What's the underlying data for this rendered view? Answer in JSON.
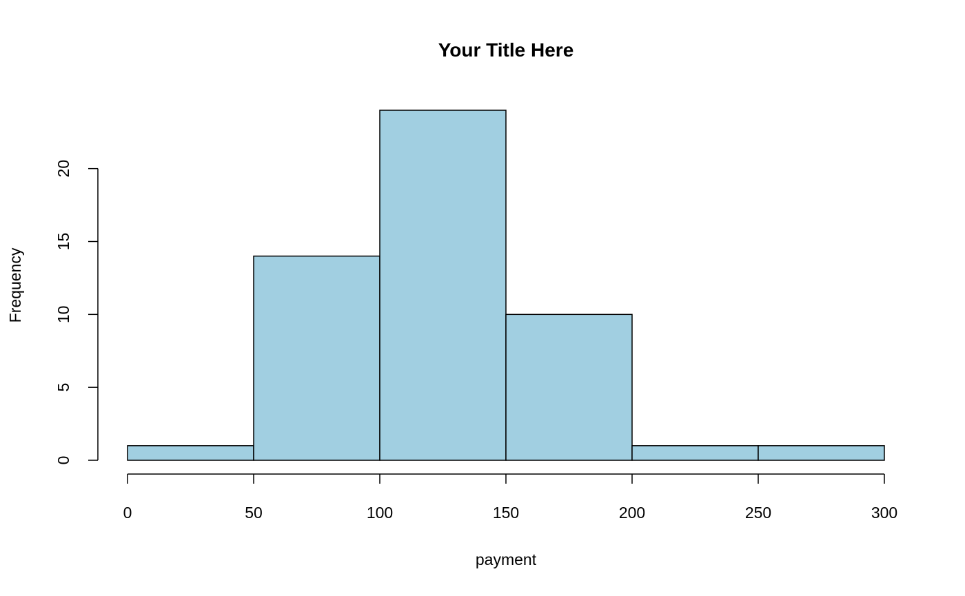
{
  "chart_data": {
    "type": "bar",
    "title": "Your Title Here",
    "xlabel": "payment",
    "ylabel": "Frequency",
    "bins": [
      {
        "x0": 0,
        "x1": 50,
        "count": 1
      },
      {
        "x0": 50,
        "x1": 100,
        "count": 14
      },
      {
        "x0": 100,
        "x1": 150,
        "count": 24
      },
      {
        "x0": 150,
        "x1": 200,
        "count": 10
      },
      {
        "x0": 200,
        "x1": 250,
        "count": 1
      },
      {
        "x0": 250,
        "x1": 300,
        "count": 1
      }
    ],
    "xticks": [
      0,
      50,
      100,
      150,
      200,
      250,
      300
    ],
    "yticks": [
      0,
      5,
      10,
      15,
      20
    ],
    "xlim": [
      0,
      300
    ],
    "ylim": [
      0,
      24
    ],
    "bar_color": "#A1CFE1",
    "grid": false
  }
}
